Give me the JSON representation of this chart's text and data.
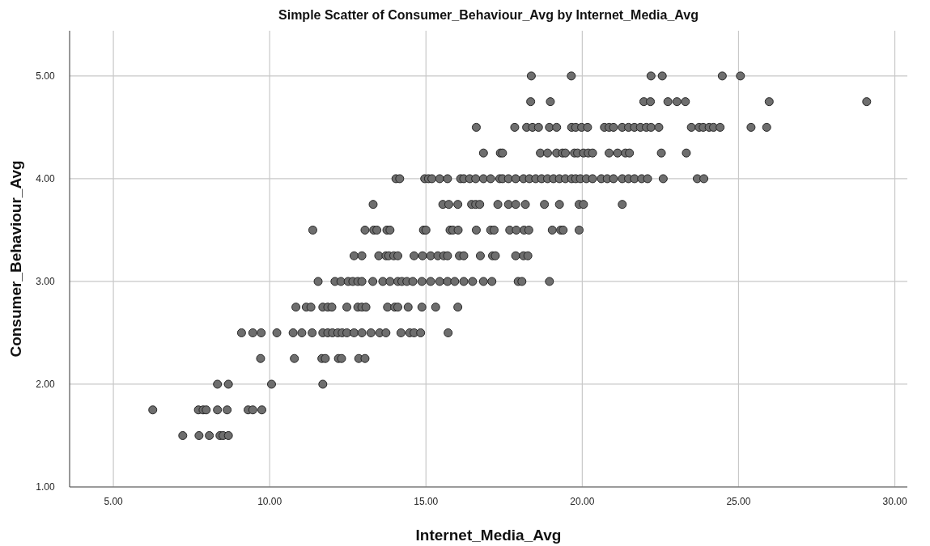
{
  "chart_data": {
    "type": "scatter",
    "title": "Simple Scatter of Consumer_Behaviour_Avg by Internet_Media_Avg",
    "xlabel": "Internet_Media_Avg",
    "ylabel": "Consumer_Behaviour_Avg",
    "xlim": [
      3.6,
      30.4
    ],
    "ylim": [
      1,
      5.44
    ],
    "xticks": [
      {
        "value": 5,
        "label": "5.00"
      },
      {
        "value": 10,
        "label": "10.00"
      },
      {
        "value": 15,
        "label": "15.00"
      },
      {
        "value": 20,
        "label": "20.00"
      },
      {
        "value": 25,
        "label": "25.00"
      },
      {
        "value": 30,
        "label": "30.00"
      }
    ],
    "yticks": [
      {
        "value": 1,
        "label": "1.00"
      },
      {
        "value": 2,
        "label": "2.00"
      },
      {
        "value": 3,
        "label": "3.00"
      },
      {
        "value": 4,
        "label": "4.00"
      },
      {
        "value": 5,
        "label": "5.00"
      }
    ],
    "grid": true,
    "marker": "circle",
    "series": [
      {
        "color": "#6e6e6e",
        "x": [
          18.37,
          19.65,
          22.2,
          22.56,
          24.48,
          25.06,
          18.35,
          18.98,
          21.97,
          22.18,
          22.74,
          23.03,
          23.3,
          25.98,
          29.1,
          16.61,
          17.84,
          18.22,
          18.41,
          18.6,
          18.95,
          19.18,
          19.66,
          19.79,
          19.98,
          20.17,
          20.71,
          20.86,
          21.0,
          21.28,
          21.48,
          21.67,
          21.86,
          22.05,
          22.2,
          22.45,
          23.49,
          23.74,
          23.87,
          24.06,
          24.2,
          24.41,
          25.4,
          25.9,
          16.84,
          17.38,
          17.45,
          18.66,
          18.89,
          19.18,
          19.37,
          19.46,
          19.75,
          19.85,
          20.04,
          20.19,
          20.33,
          20.86,
          21.13,
          21.38,
          21.51,
          22.53,
          23.33,
          14.04,
          14.16,
          14.96,
          15.08,
          15.19,
          15.44,
          15.69,
          16.11,
          16.21,
          16.4,
          16.59,
          16.84,
          17.07,
          17.36,
          17.45,
          17.64,
          17.87,
          18.12,
          18.31,
          18.51,
          18.7,
          18.89,
          19.08,
          19.27,
          19.46,
          19.66,
          19.79,
          19.94,
          20.13,
          20.33,
          20.61,
          20.8,
          21.0,
          21.28,
          21.48,
          21.67,
          21.9,
          22.09,
          22.59,
          23.68,
          23.89,
          13.31,
          15.54,
          15.73,
          16.02,
          16.46,
          16.59,
          16.72,
          17.3,
          17.64,
          17.87,
          18.18,
          18.79,
          19.27,
          19.9,
          20.04,
          21.28,
          11.38,
          13.05,
          13.33,
          13.43,
          13.75,
          13.85,
          14.92,
          15.0,
          15.77,
          15.86,
          16.03,
          16.61,
          17.07,
          17.18,
          17.68,
          17.89,
          18.14,
          18.29,
          19.04,
          19.31,
          19.39,
          19.9,
          12.7,
          12.95,
          13.49,
          13.72,
          13.81,
          13.97,
          14.1,
          14.62,
          14.89,
          15.15,
          15.38,
          15.57,
          15.69,
          16.07,
          16.21,
          16.74,
          17.13,
          17.22,
          17.87,
          18.12,
          18.26,
          11.55,
          12.09,
          12.28,
          12.51,
          12.66,
          12.82,
          12.95,
          13.3,
          13.62,
          13.85,
          14.1,
          14.23,
          14.39,
          14.58,
          14.87,
          15.15,
          15.44,
          15.69,
          15.92,
          16.21,
          16.49,
          16.84,
          17.11,
          17.95,
          18.07,
          18.95,
          10.84,
          11.17,
          11.32,
          11.7,
          11.86,
          11.99,
          12.47,
          12.82,
          12.95,
          13.08,
          13.77,
          14.0,
          14.1,
          14.43,
          14.87,
          15.31,
          16.02,
          9.1,
          9.46,
          9.73,
          10.23,
          10.75,
          11.03,
          11.36,
          11.7,
          11.86,
          12.01,
          12.18,
          12.32,
          12.47,
          12.7,
          12.95,
          13.24,
          13.52,
          13.72,
          14.2,
          14.48,
          14.62,
          14.83,
          15.71,
          9.71,
          10.79,
          11.67,
          11.78,
          12.2,
          12.3,
          12.85,
          13.05,
          8.33,
          8.68,
          10.06,
          11.7,
          6.26,
          7.72,
          7.87,
          7.97,
          8.33,
          8.64,
          9.31,
          9.46,
          9.75,
          7.22,
          7.74,
          8.07,
          8.41,
          8.51,
          8.68
        ],
        "values": [
          5,
          5,
          5,
          5,
          5,
          5,
          4.75,
          4.75,
          4.75,
          4.75,
          4.75,
          4.75,
          4.75,
          4.75,
          4.75,
          4.5,
          4.5,
          4.5,
          4.5,
          4.5,
          4.5,
          4.5,
          4.5,
          4.5,
          4.5,
          4.5,
          4.5,
          4.5,
          4.5,
          4.5,
          4.5,
          4.5,
          4.5,
          4.5,
          4.5,
          4.5,
          4.5,
          4.5,
          4.5,
          4.5,
          4.5,
          4.5,
          4.5,
          4.5,
          4.25,
          4.25,
          4.25,
          4.25,
          4.25,
          4.25,
          4.25,
          4.25,
          4.25,
          4.25,
          4.25,
          4.25,
          4.25,
          4.25,
          4.25,
          4.25,
          4.25,
          4.25,
          4.25,
          4,
          4,
          4,
          4,
          4,
          4,
          4,
          4,
          4,
          4,
          4,
          4,
          4,
          4,
          4,
          4,
          4,
          4,
          4,
          4,
          4,
          4,
          4,
          4,
          4,
          4,
          4,
          4,
          4,
          4,
          4,
          4,
          4,
          4,
          4,
          4,
          4,
          4,
          4,
          4,
          4,
          3.75,
          3.75,
          3.75,
          3.75,
          3.75,
          3.75,
          3.75,
          3.75,
          3.75,
          3.75,
          3.75,
          3.75,
          3.75,
          3.75,
          3.75,
          3.75,
          3.5,
          3.5,
          3.5,
          3.5,
          3.5,
          3.5,
          3.5,
          3.5,
          3.5,
          3.5,
          3.5,
          3.5,
          3.5,
          3.5,
          3.5,
          3.5,
          3.5,
          3.5,
          3.5,
          3.5,
          3.5,
          3.5,
          3.25,
          3.25,
          3.25,
          3.25,
          3.25,
          3.25,
          3.25,
          3.25,
          3.25,
          3.25,
          3.25,
          3.25,
          3.25,
          3.25,
          3.25,
          3.25,
          3.25,
          3.25,
          3.25,
          3.25,
          3.25,
          3,
          3,
          3,
          3,
          3,
          3,
          3,
          3,
          3,
          3,
          3,
          3,
          3,
          3,
          3,
          3,
          3,
          3,
          3,
          3,
          3,
          3,
          3,
          3,
          3,
          3,
          2.75,
          2.75,
          2.75,
          2.75,
          2.75,
          2.75,
          2.75,
          2.75,
          2.75,
          2.75,
          2.75,
          2.75,
          2.75,
          2.75,
          2.75,
          2.75,
          2.75,
          2.5,
          2.5,
          2.5,
          2.5,
          2.5,
          2.5,
          2.5,
          2.5,
          2.5,
          2.5,
          2.5,
          2.5,
          2.5,
          2.5,
          2.5,
          2.5,
          2.5,
          2.5,
          2.5,
          2.5,
          2.5,
          2.5,
          2.5,
          2.25,
          2.25,
          2.25,
          2.25,
          2.25,
          2.25,
          2.25,
          2.25,
          2,
          2,
          2,
          2,
          1.75,
          1.75,
          1.75,
          1.75,
          1.75,
          1.75,
          1.75,
          1.75,
          1.75,
          1.5,
          1.5,
          1.5,
          1.5,
          1.5,
          1.5
        ]
      }
    ]
  }
}
